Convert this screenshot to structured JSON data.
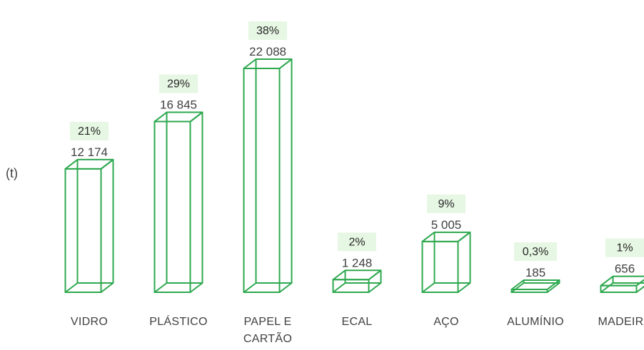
{
  "chart_data": {
    "type": "bar",
    "style": "3d-wireframe",
    "ylabel": "(t)",
    "categories": [
      [
        "VIDRO"
      ],
      [
        "PLÁSTICO"
      ],
      [
        "PAPEL E",
        "CARTÃO"
      ],
      [
        "ECAL"
      ],
      [
        "AÇO"
      ],
      [
        "ALUMÍNIO"
      ],
      [
        "MADEIRA"
      ]
    ],
    "values": [
      12174,
      16845,
      22088,
      1248,
      5005,
      185,
      656
    ],
    "value_labels": [
      "12 174",
      "16 845",
      "22 088",
      "1 248",
      "5 005",
      "185",
      "656"
    ],
    "percent_labels": [
      "21%",
      "29%",
      "38%",
      "2%",
      "9%",
      "0,3%",
      "1%"
    ],
    "colors": {
      "bar_stroke": "#2ea84f",
      "badge_fill": "#e6f7e3"
    }
  }
}
